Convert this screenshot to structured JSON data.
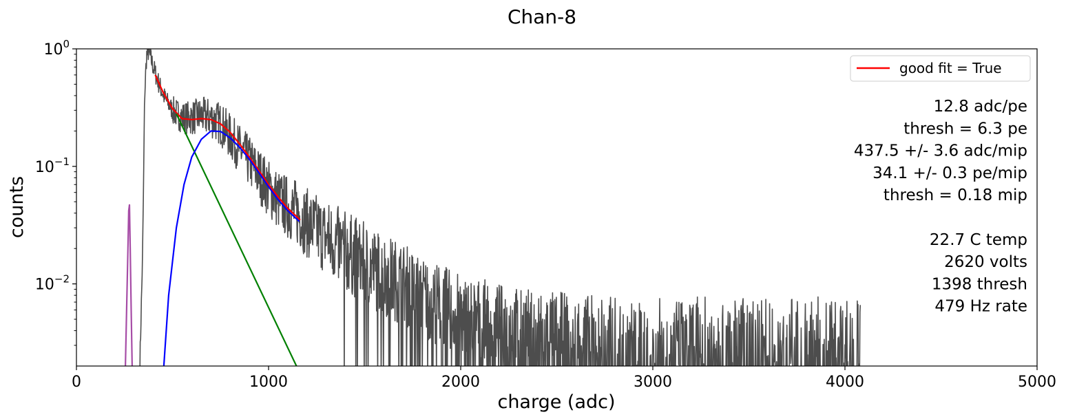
{
  "chart_data": {
    "type": "line",
    "title": "Chan-8",
    "xlabel": "charge (adc)",
    "ylabel": "counts",
    "xlim": [
      0,
      5000
    ],
    "ylim": [
      0.002,
      1.0
    ],
    "yscale": "log",
    "x_ticks": [
      {
        "value": 0,
        "label": "0"
      },
      {
        "value": 1000,
        "label": "1000"
      },
      {
        "value": 2000,
        "label": "2000"
      },
      {
        "value": 3000,
        "label": "3000"
      },
      {
        "value": 4000,
        "label": "4000"
      },
      {
        "value": 5000,
        "label": "5000"
      }
    ],
    "y_ticks": [
      {
        "value": 1.0,
        "base": "10",
        "exp": "0"
      },
      {
        "value": 0.1,
        "base": "10",
        "exp": "−1"
      },
      {
        "value": 0.01,
        "base": "10",
        "exp": "−2"
      }
    ],
    "grid": false,
    "legend": {
      "placement": "upper-right",
      "entries": [
        {
          "label": "good fit = True",
          "color": "#ff0000"
        }
      ]
    },
    "annotations": [
      "12.8  adc/pe",
      "thresh = 6.3 pe",
      "437.5 +/- 3.6  adc/mip",
      "34.1 +/- 0.3  pe/mip",
      "thresh = 0.18 mip",
      "",
      "22.7 C temp",
      "2620 volts",
      "1398 thresh",
      "479 Hz rate"
    ],
    "series": [
      {
        "role": "histogram",
        "color": "#4d4d4d",
        "x": [
          330,
          345,
          355,
          365,
          375,
          385,
          400,
          430,
          460,
          500,
          550,
          600,
          650,
          700,
          750,
          800,
          850,
          900,
          950,
          1000,
          1050,
          1100,
          1150,
          1200,
          1300,
          1400,
          1500,
          1600,
          1700,
          1800,
          1900,
          2000,
          2200,
          2400,
          2600,
          2800,
          3000,
          3200,
          3400,
          3600,
          3800,
          4000,
          4080
        ],
        "y": [
          0.002,
          0.02,
          0.4,
          0.88,
          0.95,
          0.85,
          0.7,
          0.5,
          0.38,
          0.3,
          0.26,
          0.26,
          0.27,
          0.26,
          0.23,
          0.18,
          0.14,
          0.11,
          0.085,
          0.065,
          0.052,
          0.045,
          0.04,
          0.033,
          0.025,
          0.019,
          0.015,
          0.012,
          0.01,
          0.008,
          0.0065,
          0.0055,
          0.0045,
          0.004,
          0.0037,
          0.0035,
          0.0035,
          0.0035,
          0.0035,
          0.0035,
          0.0035,
          0.0035,
          0.0035
        ],
        "noise": 0.35
      },
      {
        "role": "pedestal",
        "color": "#a64ca6",
        "x": [
          255,
          262,
          268,
          272,
          276,
          280,
          285,
          290
        ],
        "y": [
          0.002,
          0.007,
          0.02,
          0.042,
          0.047,
          0.02,
          0.006,
          0.002
        ]
      },
      {
        "role": "fit",
        "color": "#ff0000",
        "x": [
          410,
          450,
          500,
          550,
          600,
          650,
          700,
          750,
          800,
          850,
          900,
          950,
          1000,
          1050,
          1100,
          1165
        ],
        "y": [
          0.6,
          0.43,
          0.31,
          0.255,
          0.25,
          0.255,
          0.25,
          0.23,
          0.195,
          0.155,
          0.12,
          0.092,
          0.07,
          0.055,
          0.044,
          0.035
        ]
      },
      {
        "role": "exponential component",
        "color": "#008000",
        "x": [
          520,
          1145
        ],
        "y": [
          0.28,
          0.002
        ]
      },
      {
        "role": "gaussian component",
        "color": "#0000ff",
        "x": [
          455,
          480,
          520,
          560,
          600,
          650,
          700,
          750,
          800,
          850,
          900,
          950,
          1000,
          1050,
          1100,
          1160
        ],
        "y": [
          0.002,
          0.008,
          0.03,
          0.07,
          0.12,
          0.17,
          0.2,
          0.198,
          0.175,
          0.145,
          0.115,
          0.088,
          0.067,
          0.052,
          0.042,
          0.034
        ]
      }
    ]
  }
}
